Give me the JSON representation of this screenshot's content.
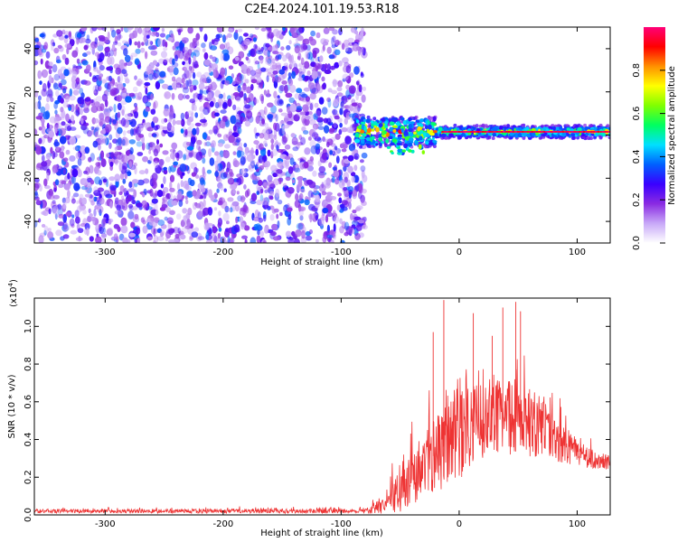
{
  "title": "C2E4.2024.101.19.53.R18",
  "chart_data": [
    {
      "type": "heatmap",
      "xlabel": "Height of straight line (km)",
      "ylabel": "Frequency (Hz)",
      "xlim": [
        -360,
        128
      ],
      "ylim": [
        -50,
        50
      ],
      "xticks": [
        -300,
        -200,
        -100,
        0,
        100
      ],
      "yticks": [
        -40,
        -20,
        0,
        20,
        40
      ],
      "grid": false,
      "noise_region_x": [
        -360,
        -80
      ],
      "signal_region_x": [
        -88,
        128
      ],
      "signal_center_frequency_hz": 1.5,
      "colorbar": {
        "label": "Normalized spectral amplitude",
        "range": [
          0.0,
          1.0
        ],
        "ticks": [
          0.0,
          0.2,
          0.4,
          0.6,
          0.8
        ],
        "tick_labels": [
          "0.0",
          "0.2",
          "0.4",
          "0.6",
          "0.8"
        ],
        "colors": [
          "#ffffff",
          "#c8a8f8",
          "#8a2be2",
          "#3a00ff",
          "#0060ff",
          "#00e0ff",
          "#00ff60",
          "#80ff00",
          "#ffff00",
          "#ff9000",
          "#ff0000",
          "#ff0078"
        ]
      }
    },
    {
      "type": "line",
      "xlabel": "Height of straight line (km)",
      "ylabel": "SNR (10 * v/v)",
      "multiplier_label": "(x10",
      "multiplier_exponent": "4",
      "xlim": [
        -360,
        128
      ],
      "ylim": [
        0,
        11500
      ],
      "xticks": [
        -300,
        -200,
        -100,
        0,
        100
      ],
      "yticks": [
        0,
        2000,
        4000,
        6000,
        8000,
        10000
      ],
      "ytick_labels": [
        "0.0",
        "0.2",
        "0.4",
        "0.6",
        "0.8",
        "1.0"
      ],
      "series_color": "#ee3333",
      "envelope": {
        "x": [
          -360,
          -80,
          -60,
          -55,
          -50,
          -45,
          -40,
          -30,
          -20,
          -15,
          -10,
          0,
          10,
          20,
          30,
          40,
          50,
          60,
          70,
          80,
          90,
          100,
          110,
          120,
          128
        ],
        "base": [
          200,
          200,
          500,
          1000,
          1400,
          1900,
          2200,
          2800,
          3200,
          3500,
          3800,
          4200,
          4600,
          5000,
          5300,
          5300,
          5200,
          4900,
          4500,
          4100,
          3700,
          3300,
          3000,
          2800,
          2700
        ],
        "range": [
          200,
          250,
          900,
          2200,
          2800,
          3200,
          3500,
          3900,
          4200,
          4400,
          4500,
          4600,
          4600,
          4500,
          4400,
          4200,
          4100,
          3800,
          3300,
          2600,
          2000,
          1500,
          1200,
          1000,
          900
        ]
      },
      "peaks": [
        {
          "x": -13,
          "y": 11400
        },
        {
          "x": 12,
          "y": 10700
        },
        {
          "x": 37,
          "y": 11000
        },
        {
          "x": 48,
          "y": 11300
        },
        {
          "x": 52,
          "y": 10800
        },
        {
          "x": -22,
          "y": 9700
        },
        {
          "x": 28,
          "y": 9500
        }
      ]
    }
  ]
}
